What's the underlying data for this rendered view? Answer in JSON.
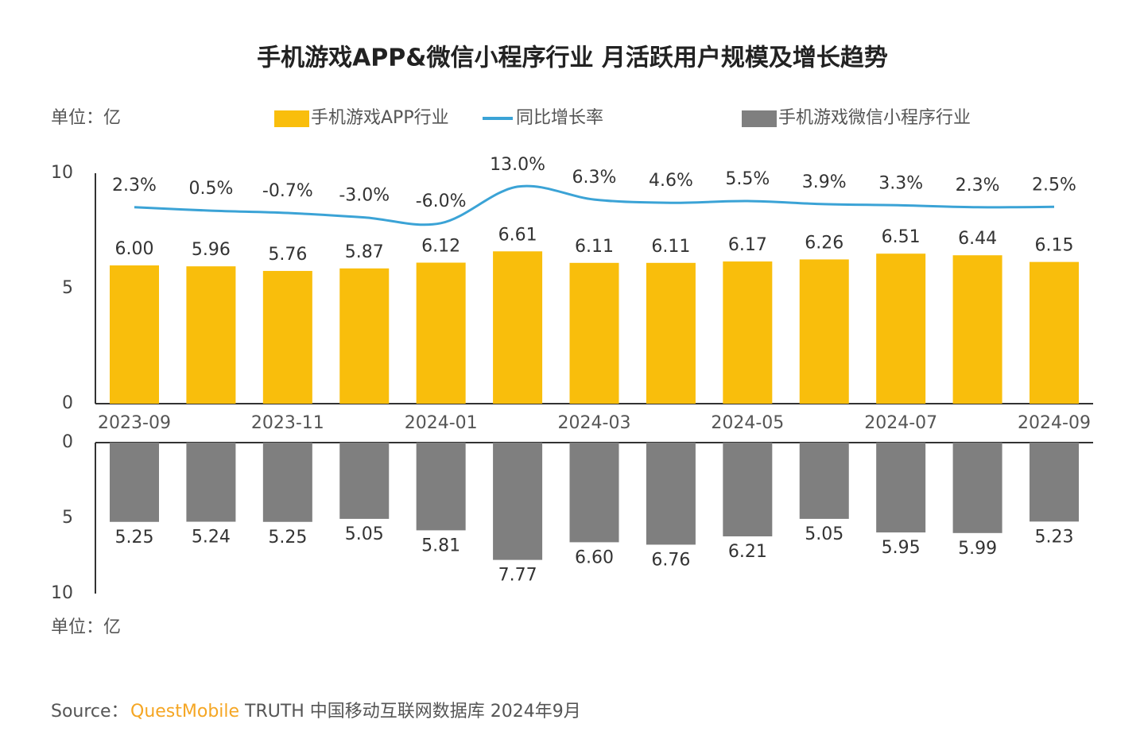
{
  "chart_data": [
    {
      "type": "bar",
      "title": "手机游戏APP&微信小程序行业 月活跃用户规模及增长趋势",
      "unit": "单位：亿",
      "categories": [
        "2023-09",
        null,
        "2023-11",
        null,
        "2024-01",
        null,
        "2024-03",
        null,
        "2024-05",
        null,
        "2024-07",
        null,
        "2024-09"
      ],
      "ylim": [
        0,
        10
      ],
      "yticks": [
        0,
        5,
        10
      ],
      "y2lim": [
        -100,
        20
      ],
      "series": [
        {
          "name": "手机游戏APP行业",
          "color": "#F9BE0C",
          "values": [
            6.0,
            5.96,
            5.76,
            5.87,
            6.12,
            6.61,
            6.11,
            6.11,
            6.17,
            6.26,
            6.51,
            6.44,
            6.15
          ],
          "value_labels": [
            "6.00",
            "5.96",
            "5.76",
            "5.87",
            "6.12",
            "6.61",
            "6.11",
            "6.11",
            "6.17",
            "6.26",
            "6.51",
            "6.44",
            "6.15"
          ]
        },
        {
          "name": "同比增长率",
          "color": "#3BA3D6",
          "type": "line",
          "axis": "y2",
          "values": [
            2.3,
            0.5,
            -0.7,
            -3.0,
            -6.0,
            13.0,
            6.3,
            4.6,
            5.5,
            3.9,
            3.3,
            2.3,
            2.5
          ],
          "value_labels": [
            "2.3%",
            "0.5%",
            "-0.7%",
            "-3.0%",
            "-6.0%",
            "13.0%",
            "6.3%",
            "4.6%",
            "5.5%",
            "3.9%",
            "3.3%",
            "2.3%",
            "2.5%"
          ]
        }
      ]
    },
    {
      "type": "bar",
      "unit": "单位：亿",
      "ylim": [
        0,
        10
      ],
      "yticks": [
        0,
        5,
        10
      ],
      "inverted": true,
      "series": [
        {
          "name": "手机游戏微信小程序行业",
          "color": "#7F7F7F",
          "values": [
            5.25,
            5.24,
            5.25,
            5.05,
            5.81,
            7.77,
            6.6,
            6.76,
            6.21,
            5.05,
            5.95,
            5.99,
            5.23
          ],
          "value_labels": [
            "5.25",
            "5.24",
            "5.25",
            "5.05",
            "5.81",
            "7.77",
            "6.60",
            "6.76",
            "6.21",
            "5.05",
            "5.95",
            "5.99",
            "5.23"
          ]
        }
      ]
    }
  ],
  "source": {
    "label": "Source：",
    "brand": "QuestMobile",
    "text": "TRUTH 中国移动互联网数据库 2024年9月"
  }
}
